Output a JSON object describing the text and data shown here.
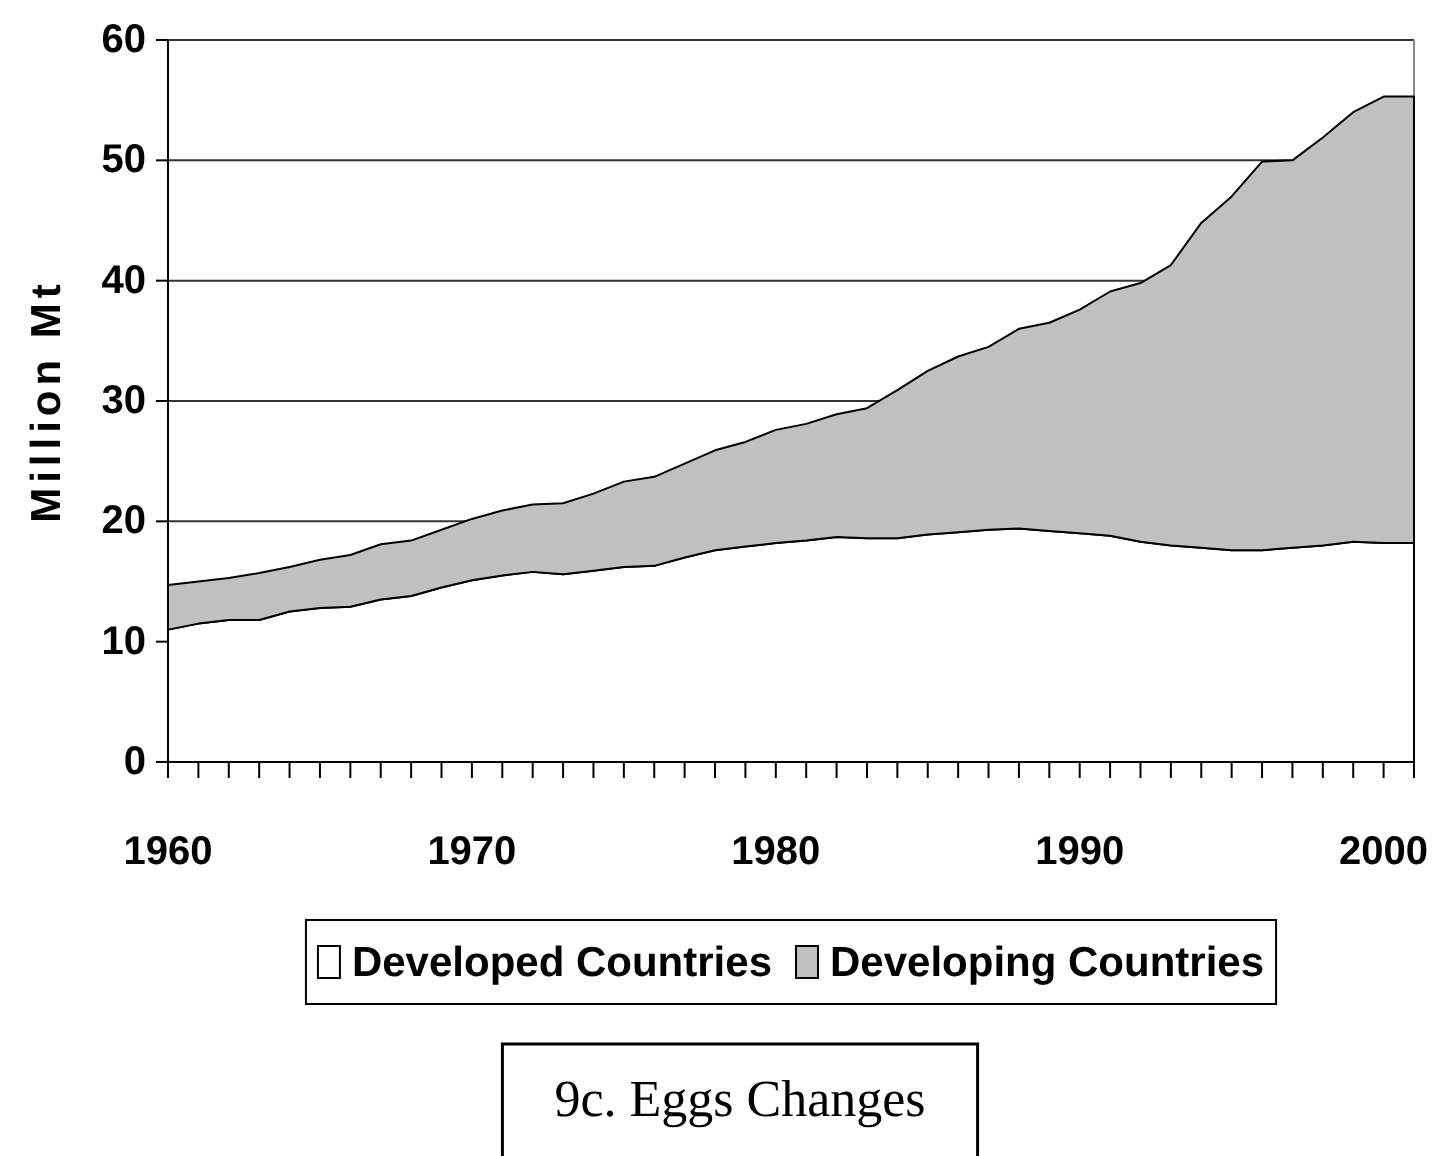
{
  "chart_data": {
    "type": "area",
    "stacked": true,
    "title": "9c. Eggs Changes",
    "ylabel": "Million Mt",
    "x": [
      1960,
      1961,
      1962,
      1963,
      1964,
      1965,
      1966,
      1967,
      1968,
      1969,
      1970,
      1971,
      1972,
      1973,
      1974,
      1975,
      1976,
      1977,
      1978,
      1979,
      1980,
      1981,
      1982,
      1983,
      1984,
      1985,
      1986,
      1987,
      1988,
      1989,
      1990,
      1991,
      1992,
      1993,
      1994,
      1995,
      1996,
      1997,
      1998,
      1999,
      2000,
      2001
    ],
    "series": [
      {
        "name": "Developed Countries",
        "color": "#ffffff",
        "values": [
          11.0,
          11.5,
          11.8,
          11.8,
          12.5,
          12.8,
          12.9,
          13.5,
          13.8,
          14.5,
          15.1,
          15.5,
          15.8,
          15.6,
          15.9,
          16.2,
          16.3,
          17.0,
          17.6,
          17.9,
          18.2,
          18.4,
          18.7,
          18.6,
          18.6,
          18.9,
          19.1,
          19.3,
          19.4,
          19.2,
          19.0,
          18.8,
          18.3,
          18.0,
          17.8,
          17.6,
          17.6,
          17.8,
          18.0,
          18.3,
          18.2,
          18.2
        ]
      },
      {
        "name": "Developing Countries",
        "color": "#c0c0c0",
        "values": [
          3.7,
          3.5,
          3.5,
          3.9,
          3.7,
          4.0,
          4.3,
          4.6,
          4.6,
          4.8,
          5.1,
          5.4,
          5.6,
          5.9,
          6.4,
          7.1,
          7.4,
          7.8,
          8.3,
          8.7,
          9.4,
          9.7,
          10.2,
          10.8,
          12.3,
          13.6,
          14.6,
          15.2,
          16.6,
          17.3,
          18.6,
          20.3,
          21.5,
          23.3,
          27.0,
          29.4,
          32.3,
          32.2,
          33.9,
          35.7,
          37.1,
          37.1
        ]
      }
    ],
    "xlim": [
      1960,
      2001
    ],
    "xticks": [
      1960,
      {
        "value": 1961,
        "label": null
      },
      {
        "value": 1962,
        "label": null
      },
      {
        "value": 1963,
        "label": null
      },
      {
        "value": 1964,
        "label": null
      },
      {
        "value": 1965,
        "label": null
      },
      {
        "value": 1966,
        "label": null
      },
      {
        "value": 1967,
        "label": null
      },
      {
        "value": 1968,
        "label": null
      },
      {
        "value": 1969,
        "label": null
      },
      1970,
      {
        "value": 1971,
        "label": null
      },
      {
        "value": 1972,
        "label": null
      },
      {
        "value": 1973,
        "label": null
      },
      {
        "value": 1974,
        "label": null
      },
      {
        "value": 1975,
        "label": null
      },
      {
        "value": 1976,
        "label": null
      },
      {
        "value": 1977,
        "label": null
      },
      {
        "value": 1978,
        "label": null
      },
      {
        "value": 1979,
        "label": null
      },
      1980,
      {
        "value": 1981,
        "label": null
      },
      {
        "value": 1982,
        "label": null
      },
      {
        "value": 1983,
        "label": null
      },
      {
        "value": 1984,
        "label": null
      },
      {
        "value": 1985,
        "label": null
      },
      {
        "value": 1986,
        "label": null
      },
      {
        "value": 1987,
        "label": null
      },
      {
        "value": 1988,
        "label": null
      },
      {
        "value": 1989,
        "label": null
      },
      1990,
      {
        "value": 1991,
        "label": null
      },
      {
        "value": 1992,
        "label": null
      },
      {
        "value": 1993,
        "label": null
      },
      {
        "value": 1994,
        "label": null
      },
      {
        "value": 1995,
        "label": null
      },
      {
        "value": 1996,
        "label": null
      },
      {
        "value": 1997,
        "label": null
      },
      {
        "value": 1998,
        "label": null
      },
      {
        "value": 1999,
        "label": null
      },
      2000,
      {
        "value": 2001,
        "label": null
      }
    ],
    "ylim": [
      0,
      60
    ],
    "yticks": [
      0,
      10,
      20,
      30,
      40,
      50,
      60
    ],
    "grid": "y",
    "legend": "bottom"
  }
}
